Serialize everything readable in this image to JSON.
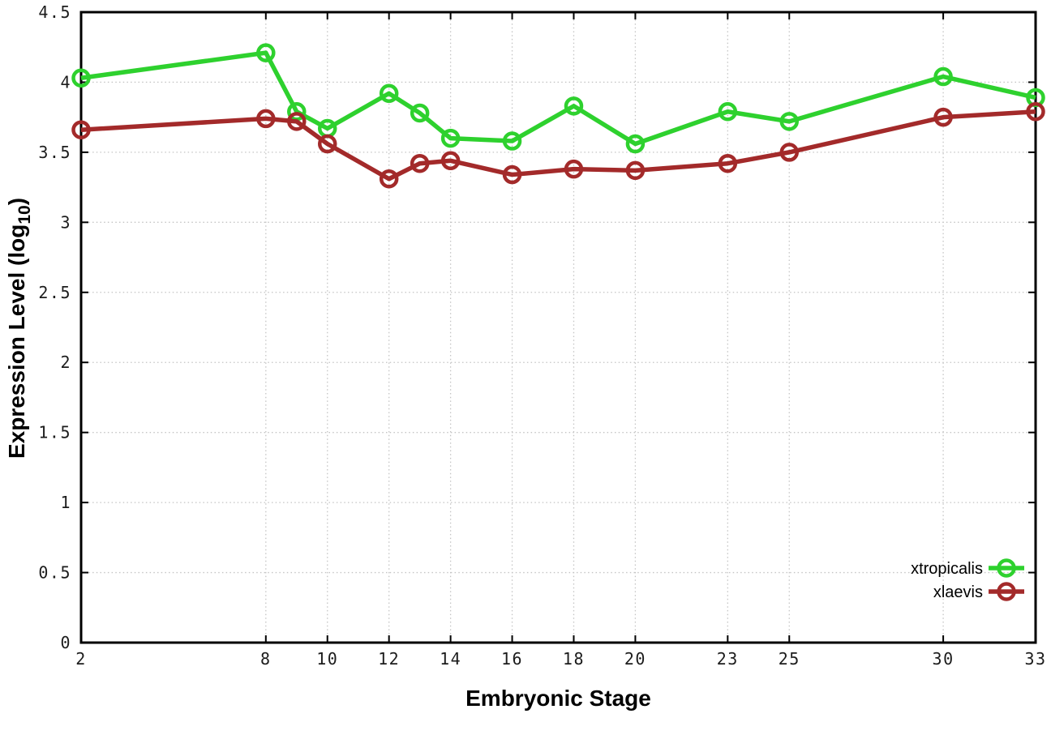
{
  "figure": {
    "xlabel": "Embryonic Stage",
    "ylabel_main": "Expression Level (log",
    "ylabel_sub": "10",
    "ylabel_suffix": ")"
  },
  "style": {
    "background": "#ffffff",
    "axis_color": "#000000",
    "grid_color": "#c4c4c4",
    "tick_label_color": "#1c1c1c",
    "xtropicalis_color": "#2ed12e",
    "xlaevis_color": "#a32a2a"
  },
  "chart_data": {
    "type": "line",
    "title": "",
    "xlabel": "Embryonic Stage",
    "ylabel": "Expression Level (log10)",
    "x": [
      2,
      8,
      9,
      10,
      12,
      13,
      14,
      16,
      18,
      20,
      23,
      25,
      30,
      33
    ],
    "xticks": [
      2,
      8,
      10,
      12,
      14,
      16,
      18,
      20,
      23,
      25,
      30,
      33
    ],
    "yticks": [
      0,
      0.5,
      1,
      1.5,
      2,
      2.5,
      3,
      3.5,
      4,
      4.5
    ],
    "xlim": [
      2,
      33
    ],
    "ylim": [
      0,
      4.5
    ],
    "grid": true,
    "legend_position": "bottom-right",
    "marker": "open-circle",
    "series": [
      {
        "name": "xtropicalis",
        "color": "#2ed12e",
        "values": [
          4.03,
          4.21,
          3.79,
          3.67,
          3.92,
          3.78,
          3.6,
          3.58,
          3.83,
          3.56,
          3.79,
          3.72,
          4.04,
          3.89
        ]
      },
      {
        "name": "xlaevis",
        "color": "#a32a2a",
        "values": [
          3.66,
          3.74,
          3.72,
          3.56,
          3.31,
          3.42,
          3.44,
          3.34,
          3.38,
          3.37,
          3.42,
          3.5,
          3.75,
          3.79
        ]
      }
    ]
  }
}
